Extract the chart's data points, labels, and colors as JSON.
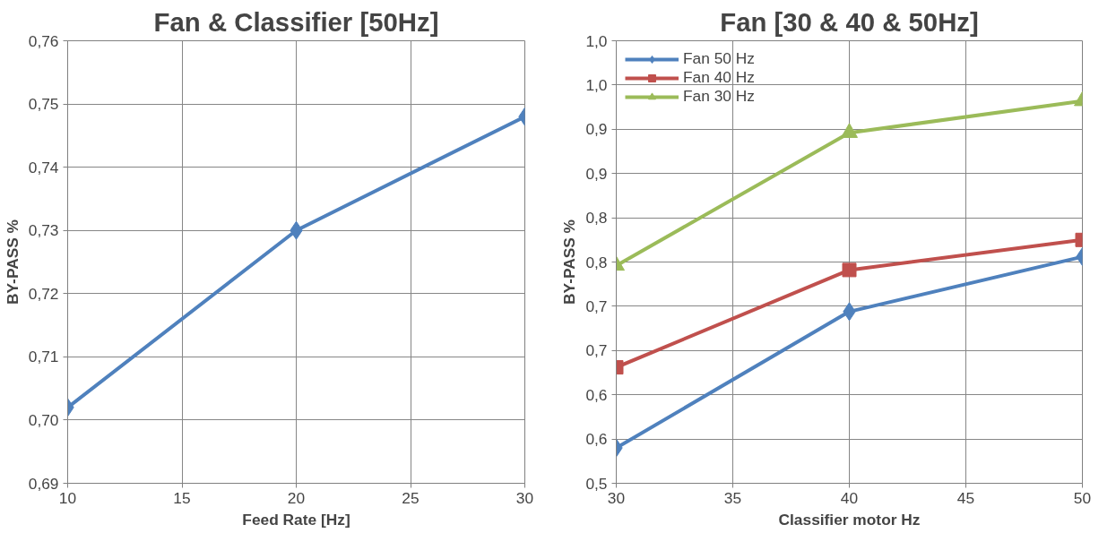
{
  "chart_data": [
    {
      "type": "line",
      "title": "Fan & Classifier [50Hz]",
      "xlabel": "Feed Rate [Hz]",
      "ylabel": "BY-PASS %",
      "x": [
        10,
        20,
        30
      ],
      "series": [
        {
          "color": "#4f81bd",
          "marker": "diamond",
          "values": [
            0.702,
            0.73,
            0.748
          ]
        }
      ],
      "xlim": [
        10,
        30
      ],
      "xticks": [
        10,
        15,
        20,
        25,
        30
      ],
      "ylim": [
        0.69,
        0.76
      ],
      "yticks": [
        {
          "value": 0.69,
          "label": "0,69"
        },
        {
          "value": 0.7,
          "label": "0,70"
        },
        {
          "value": 0.71,
          "label": "0,71"
        },
        {
          "value": 0.72,
          "label": "0,72"
        },
        {
          "value": 0.73,
          "label": "0,73"
        },
        {
          "value": 0.74,
          "label": "0,74"
        },
        {
          "value": 0.75,
          "label": "0,75"
        },
        {
          "value": 0.76,
          "label": "0,76"
        }
      ],
      "grid": true,
      "legend": false
    },
    {
      "type": "line",
      "title": "Fan [30 & 40 & 50Hz]",
      "xlabel": "Classifier motor Hz",
      "ylabel": "BY-PASS %",
      "x": [
        30,
        40,
        50
      ],
      "series": [
        {
          "name": "Fan 50 Hz",
          "color": "#4f81bd",
          "marker": "diamond",
          "values": [
            0.54,
            0.694,
            0.756
          ]
        },
        {
          "name": "Fan 40 Hz",
          "color": "#c0504d",
          "marker": "square",
          "values": [
            0.631,
            0.741,
            0.775
          ]
        },
        {
          "name": "Fan 30 Hz",
          "color": "#9bbb59",
          "marker": "triangle",
          "values": [
            0.746,
            0.896,
            0.932
          ]
        }
      ],
      "xlim": [
        30,
        50
      ],
      "xticks": [
        30,
        35,
        40,
        45,
        50
      ],
      "ylim": [
        0.5,
        1.0
      ],
      "yticks": [
        {
          "value": 0.5,
          "label": "0,5"
        },
        {
          "value": 0.55,
          "label": "0,6"
        },
        {
          "value": 0.6,
          "label": "0,6"
        },
        {
          "value": 0.65,
          "label": "0,7"
        },
        {
          "value": 0.7,
          "label": "0,7"
        },
        {
          "value": 0.75,
          "label": "0,8"
        },
        {
          "value": 0.8,
          "label": "0,8"
        },
        {
          "value": 0.85,
          "label": "0,9"
        },
        {
          "value": 0.9,
          "label": "0,9"
        },
        {
          "value": 0.95,
          "label": "1,0"
        },
        {
          "value": 1.0,
          "label": "1,0"
        }
      ],
      "grid": true,
      "legend": "top left"
    }
  ]
}
